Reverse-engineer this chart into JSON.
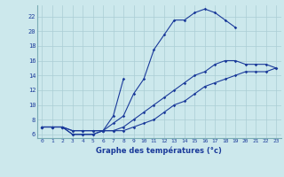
{
  "xlabel": "Graphe des températures (°c)",
  "background_color": "#cce8ec",
  "grid_color": "#aacdd4",
  "line_color": "#1a3a9a",
  "xlim": [
    -0.5,
    23.5
  ],
  "ylim": [
    5.5,
    23.5
  ],
  "xticks": [
    0,
    1,
    2,
    3,
    4,
    5,
    6,
    7,
    8,
    9,
    10,
    11,
    12,
    13,
    14,
    15,
    16,
    17,
    18,
    19,
    20,
    21,
    22,
    23
  ],
  "yticks": [
    6,
    8,
    10,
    12,
    14,
    16,
    18,
    20,
    22
  ],
  "line1_x": [
    0,
    1,
    2,
    3,
    4,
    5,
    6,
    7,
    8,
    9,
    10,
    11,
    12,
    13,
    14,
    15,
    16,
    17,
    18,
    19
  ],
  "line1_y": [
    7.0,
    7.0,
    7.0,
    6.5,
    6.5,
    6.5,
    6.5,
    7.5,
    8.5,
    11.5,
    13.5,
    17.5,
    19.5,
    21.5,
    21.5,
    22.5,
    23.0,
    22.5,
    21.5,
    20.5
  ],
  "line2_x": [
    0,
    1,
    2,
    3,
    4,
    5,
    6,
    7,
    8
  ],
  "line2_y": [
    7.0,
    7.0,
    7.0,
    6.5,
    6.5,
    6.5,
    6.5,
    8.5,
    13.5
  ],
  "line3_x": [
    0,
    1,
    2,
    3,
    4,
    5,
    6,
    7,
    8,
    9,
    10,
    11,
    12,
    13,
    14,
    15,
    16,
    17,
    18,
    19,
    20,
    21,
    22,
    23
  ],
  "line3_y": [
    7.0,
    7.0,
    7.0,
    6.0,
    6.0,
    6.0,
    6.5,
    6.5,
    7.0,
    8.0,
    9.0,
    10.0,
    11.0,
    12.0,
    13.0,
    14.0,
    14.5,
    15.5,
    16.0,
    16.0,
    15.5,
    15.5,
    15.5,
    15.0
  ],
  "line4_x": [
    0,
    1,
    2,
    3,
    4,
    5,
    6,
    7,
    8,
    9,
    10,
    11,
    12,
    13,
    14,
    15,
    16,
    17,
    18,
    19,
    20,
    21,
    22,
    23
  ],
  "line4_y": [
    7.0,
    7.0,
    7.0,
    6.0,
    6.0,
    6.0,
    6.5,
    6.5,
    6.5,
    7.0,
    7.5,
    8.0,
    9.0,
    10.0,
    10.5,
    11.5,
    12.5,
    13.0,
    13.5,
    14.0,
    14.5,
    14.5,
    14.5,
    15.0
  ]
}
